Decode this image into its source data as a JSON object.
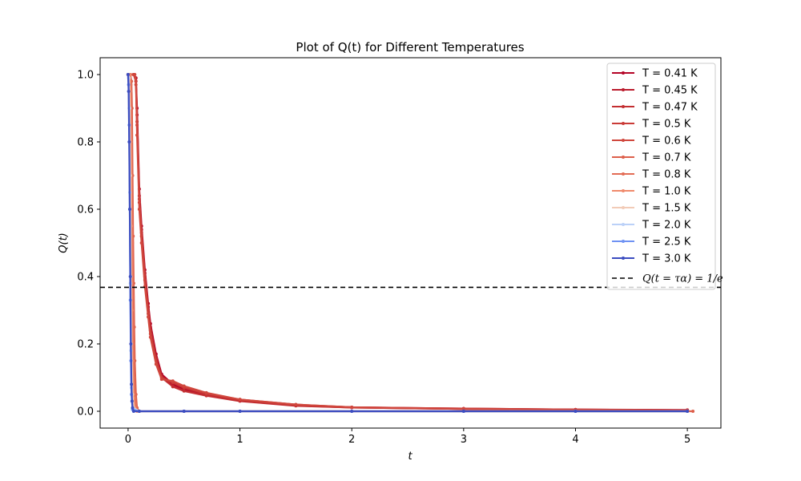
{
  "chart_data": {
    "type": "line",
    "title": "Plot of Q(t) for Different Temperatures",
    "xlabel": "t",
    "ylabel": "Q(t)",
    "xlim": [
      -0.25,
      5.3
    ],
    "ylim": [
      -0.05,
      1.05
    ],
    "xticks": [
      "0",
      "1",
      "2",
      "3",
      "4",
      "5"
    ],
    "yticks": [
      "0.0",
      "0.2",
      "0.4",
      "0.6",
      "0.8",
      "1.0"
    ],
    "grid": false,
    "legend_position": "top-right",
    "reference_line": {
      "label": "Q(t = τα) = 1/e",
      "y": 0.3679,
      "color": "#000000",
      "style": "dashed"
    },
    "series": [
      {
        "name": "T = 0.41 K",
        "color": "#b40426",
        "x": [
          0,
          0.05,
          0.07,
          0.08,
          0.1,
          0.12,
          0.15,
          0.18,
          0.2,
          0.25,
          0.3,
          0.4,
          0.5,
          0.7,
          1.0,
          1.5,
          2.0,
          3.0,
          4.0,
          5.0
        ],
        "y": [
          1.0,
          1.0,
          0.99,
          0.9,
          0.66,
          0.55,
          0.42,
          0.32,
          0.26,
          0.17,
          0.11,
          0.08,
          0.065,
          0.05,
          0.033,
          0.018,
          0.012,
          0.008,
          0.005,
          0.004
        ]
      },
      {
        "name": "T = 0.45 K",
        "color": "#bb1b2c",
        "x": [
          0,
          0.05,
          0.07,
          0.08,
          0.1,
          0.12,
          0.15,
          0.18,
          0.2,
          0.25,
          0.3,
          0.4,
          0.5,
          0.7,
          1.0,
          1.5,
          2.0,
          3.0,
          4.0,
          5.0
        ],
        "y": [
          1.0,
          1.0,
          0.99,
          0.88,
          0.64,
          0.54,
          0.41,
          0.31,
          0.25,
          0.16,
          0.105,
          0.075,
          0.062,
          0.048,
          0.031,
          0.017,
          0.011,
          0.007,
          0.005,
          0.003
        ]
      },
      {
        "name": "T = 0.47 K",
        "color": "#c32e31",
        "x": [
          0,
          0.05,
          0.07,
          0.08,
          0.1,
          0.12,
          0.15,
          0.18,
          0.2,
          0.25,
          0.3,
          0.4,
          0.5,
          0.7,
          1.0,
          1.5,
          2.0,
          3.0,
          4.0,
          5.0
        ],
        "y": [
          1.0,
          1.0,
          0.98,
          0.86,
          0.63,
          0.53,
          0.4,
          0.3,
          0.24,
          0.155,
          0.1,
          0.073,
          0.06,
          0.046,
          0.03,
          0.016,
          0.011,
          0.007,
          0.004,
          0.003
        ]
      },
      {
        "name": "T = 0.5 K",
        "color": "#ca3b37",
        "x": [
          0,
          0.05,
          0.07,
          0.08,
          0.1,
          0.12,
          0.15,
          0.18,
          0.2,
          0.25,
          0.3,
          0.4,
          0.5,
          0.7,
          1.0,
          1.5,
          2.0,
          3.0,
          4.0,
          5.0
        ],
        "y": [
          1.0,
          1.0,
          0.98,
          0.85,
          0.62,
          0.52,
          0.39,
          0.29,
          0.23,
          0.15,
          0.1,
          0.085,
          0.07,
          0.052,
          0.035,
          0.02,
          0.012,
          0.008,
          0.005,
          0.003
        ]
      },
      {
        "name": "T = 0.6 K",
        "color": "#d0473d",
        "x": [
          0,
          0.05,
          0.06,
          0.07,
          0.08,
          0.1,
          0.12,
          0.15,
          0.18,
          0.2,
          0.25,
          0.3,
          0.4,
          0.5,
          0.7,
          1.0,
          1.5,
          2.0,
          3.0,
          4.0,
          5.0
        ],
        "y": [
          1.0,
          1.0,
          1.0,
          0.97,
          0.82,
          0.6,
          0.5,
          0.37,
          0.28,
          0.22,
          0.14,
          0.095,
          0.09,
          0.075,
          0.055,
          0.035,
          0.02,
          0.012,
          0.007,
          0.004,
          0.002
        ]
      },
      {
        "name": "T = 0.7 K",
        "color": "#dd5f4b",
        "x": [
          0,
          0.02,
          0.03,
          0.035,
          0.04,
          0.045,
          0.05,
          0.055,
          0.06,
          0.07,
          0.08,
          0.1,
          0.5,
          1.0,
          2.0,
          3.0,
          4.0,
          5.0,
          5.05
        ],
        "y": [
          1.0,
          1.0,
          0.98,
          0.9,
          0.7,
          0.52,
          0.38,
          0.25,
          0.15,
          0.05,
          0.01,
          0.0,
          0.0,
          0.0,
          0.0,
          0.0,
          0.0,
          0.0,
          0.0
        ]
      },
      {
        "name": "T = 0.8 K",
        "color": "#e36c55",
        "x": [
          0,
          0.02,
          0.025,
          0.03,
          0.035,
          0.04,
          0.045,
          0.05,
          0.055,
          0.06,
          0.07,
          0.08,
          0.1,
          0.5,
          1.0,
          2.0,
          3.0,
          4.0,
          5.0
        ],
        "y": [
          1.0,
          1.0,
          0.97,
          0.88,
          0.7,
          0.5,
          0.34,
          0.2,
          0.1,
          0.05,
          0.02,
          0.005,
          0.0,
          0.0,
          0.0,
          0.0,
          0.0,
          0.0,
          0.0
        ]
      },
      {
        "name": "T = 1.0 K",
        "color": "#f08a6c",
        "x": [
          0,
          0.015,
          0.02,
          0.025,
          0.03,
          0.035,
          0.04,
          0.05,
          0.06,
          0.08,
          0.1,
          0.5,
          1.0,
          2.0,
          3.0,
          4.0,
          5.0
        ],
        "y": [
          1.0,
          1.0,
          0.95,
          0.8,
          0.55,
          0.3,
          0.15,
          0.04,
          0.01,
          0.0,
          0.0,
          0.0,
          0.0,
          0.0,
          0.0,
          0.0,
          0.0
        ]
      },
      {
        "name": "T = 1.5 K",
        "color": "#f2cbb7",
        "x": [
          0,
          0.01,
          0.015,
          0.02,
          0.025,
          0.03,
          0.04,
          0.05,
          0.1,
          0.5,
          1.0,
          2.0,
          3.0,
          4.0,
          5.0
        ],
        "y": [
          1.0,
          0.99,
          0.9,
          0.7,
          0.4,
          0.2,
          0.05,
          0.01,
          0.0,
          0.0,
          0.0,
          0.0,
          0.0,
          0.0,
          0.0
        ]
      },
      {
        "name": "T = 2.0 K",
        "color": "#bbd1f8",
        "x": [
          0,
          0.005,
          0.01,
          0.015,
          0.02,
          0.025,
          0.03,
          0.04,
          0.1,
          0.5,
          1.0,
          2.0,
          3.0,
          4.0,
          5.0
        ],
        "y": [
          1.0,
          0.99,
          0.9,
          0.65,
          0.38,
          0.18,
          0.07,
          0.01,
          0.0,
          0.0,
          0.0,
          0.0,
          0.0,
          0.0,
          0.0
        ]
      },
      {
        "name": "T = 2.5 K",
        "color": "#6f92f3",
        "x": [
          0,
          0.005,
          0.01,
          0.015,
          0.02,
          0.025,
          0.03,
          0.04,
          0.1,
          0.5,
          1.0,
          2.0,
          3.0,
          4.0,
          5.0
        ],
        "y": [
          1.0,
          0.97,
          0.85,
          0.6,
          0.33,
          0.15,
          0.05,
          0.005,
          0.0,
          0.0,
          0.0,
          0.0,
          0.0,
          0.0,
          0.0
        ]
      },
      {
        "name": "T = 3.0 K",
        "color": "#3b4cc0",
        "x": [
          0,
          0.005,
          0.01,
          0.015,
          0.02,
          0.025,
          0.03,
          0.035,
          0.04,
          0.05,
          0.1,
          0.5,
          1.0,
          2.0,
          3.0,
          4.0,
          5.0
        ],
        "y": [
          1.0,
          0.95,
          0.8,
          0.6,
          0.4,
          0.2,
          0.08,
          0.03,
          0.01,
          0.0,
          0.0,
          0.0,
          0.0,
          0.0,
          0.0,
          0.0,
          0.0
        ]
      }
    ]
  }
}
